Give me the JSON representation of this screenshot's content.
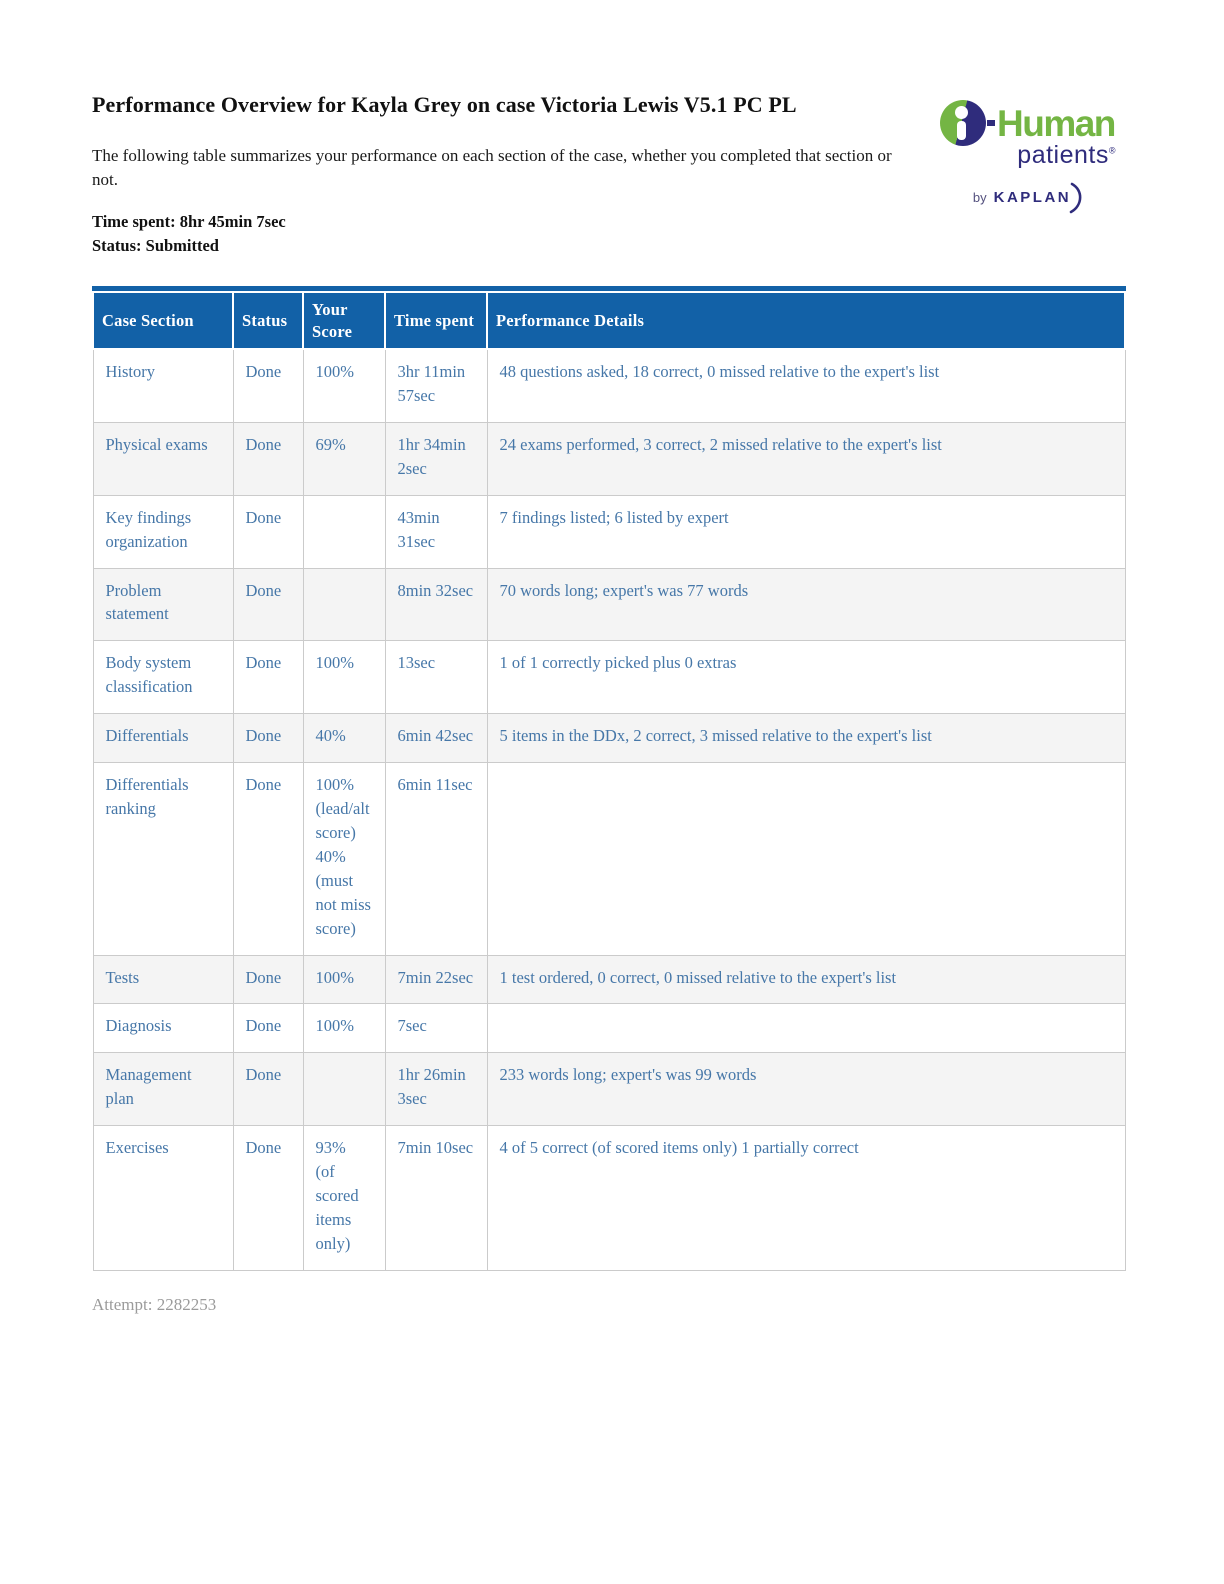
{
  "header": {
    "title": "Performance Overview for Kayla Grey on case Victoria Lewis V5.1 PC PL",
    "intro": "The following table summarizes your performance on each section of the case, whether you completed that section or not.",
    "time_spent_label": "Time spent:",
    "time_spent_value": "8hr 45min 7sec",
    "status_label": "Status:",
    "status_value": "Submitted"
  },
  "logo": {
    "human": "Human",
    "patients": "patients",
    "registered": "®",
    "by": "by",
    "kaplan": "KAPLAN",
    "green": "#74b544",
    "navy": "#2f2c7c"
  },
  "table": {
    "columns": [
      "Case Section",
      "Status",
      "Your Score",
      "Time spent",
      "Performance Details"
    ],
    "rows": [
      {
        "section": "History",
        "status": "Done",
        "score": "100%",
        "time": "3hr 11min 57sec",
        "details": "48 questions asked, 18 correct, 0 missed relative to the expert's list"
      },
      {
        "section": "Physical exams",
        "status": "Done",
        "score": "69%",
        "time": "1hr 34min 2sec",
        "details": "24 exams performed, 3 correct, 2 missed relative to the expert's list"
      },
      {
        "section": "Key findings organization",
        "status": "Done",
        "score": "",
        "time": "43min 31sec",
        "details": "7 findings listed; 6 listed by expert"
      },
      {
        "section": "Problem statement",
        "status": "Done",
        "score": "",
        "time": "8min 32sec",
        "details": "70 words long; expert's was 77 words"
      },
      {
        "section": "Body system classification",
        "status": "Done",
        "score": "100%",
        "time": "13sec",
        "details": "1 of 1 correctly picked plus 0 extras"
      },
      {
        "section": "Differentials",
        "status": "Done",
        "score": "40%",
        "time": "6min 42sec",
        "details": "5 items in the DDx, 2 correct, 3 missed relative to the expert's list"
      },
      {
        "section": "Differentials ranking",
        "status": "Done",
        "score": "100% (lead/alt score)\n40% (must not miss score)",
        "time": "6min 11sec",
        "details": ""
      },
      {
        "section": "Tests",
        "status": "Done",
        "score": "100%",
        "time": "7min 22sec",
        "details": "1 test ordered, 0 correct, 0 missed relative to the expert's list"
      },
      {
        "section": "Diagnosis",
        "status": "Done",
        "score": "100%",
        "time": "7sec",
        "details": ""
      },
      {
        "section": "Management plan",
        "status": "Done",
        "score": "",
        "time": "1hr 26min 3sec",
        "details": "233 words long; expert's was 99 words"
      },
      {
        "section": "Exercises",
        "status": "Done",
        "score": "93%\n(of scored items only)",
        "time": "7min 10sec",
        "details": "4 of 5 correct (of scored items only) 1 partially correct"
      }
    ]
  },
  "footer": {
    "attempt_label": "Attempt:",
    "attempt_value": "2282253"
  },
  "colors": {
    "header_bg": "#1261a7",
    "cell_text": "#4677a8",
    "border": "#cbcbcb",
    "stripe": "#f4f4f4",
    "attempt_text": "#9b9b9b"
  }
}
